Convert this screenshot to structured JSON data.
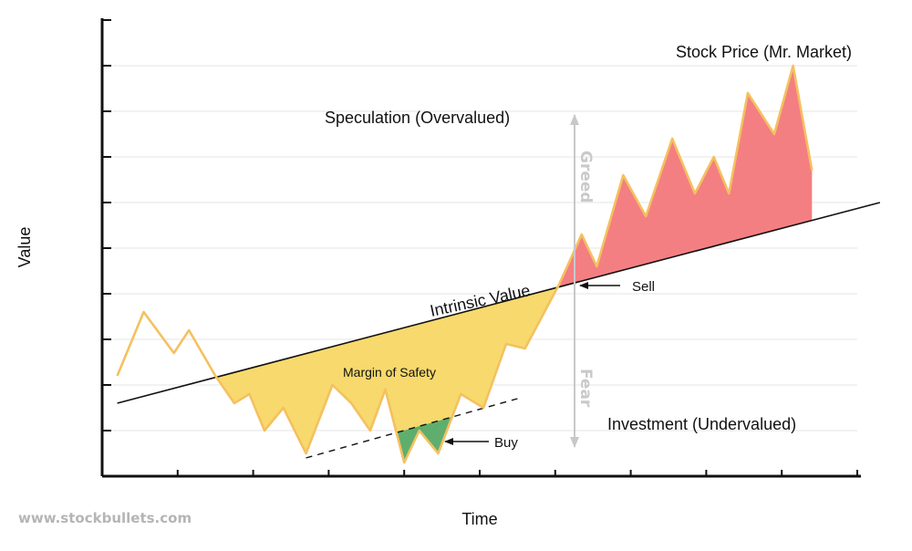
{
  "chart_data": {
    "type": "line",
    "xlabel": "Time",
    "ylabel": "Value",
    "x_range": [
      0,
      10
    ],
    "y_range": [
      0,
      10
    ],
    "grid": true,
    "series": [
      {
        "name": "Stock Price (Mr. Market)",
        "x": [
          0.2,
          0.55,
          0.95,
          1.15,
          1.5,
          1.75,
          1.95,
          2.15,
          2.4,
          2.7,
          3.05,
          3.3,
          3.55,
          3.75,
          4.0,
          4.2,
          4.45,
          4.75,
          5.05,
          5.35,
          5.6,
          6.05,
          6.35,
          6.55,
          6.9,
          7.2,
          7.55,
          7.85,
          8.1,
          8.3,
          8.55,
          8.9,
          9.15,
          9.4
        ],
        "y": [
          2.2,
          3.6,
          2.7,
          3.2,
          2.2,
          1.6,
          1.8,
          1.0,
          1.5,
          0.5,
          2.0,
          1.6,
          1.0,
          1.9,
          0.3,
          1.0,
          0.5,
          1.8,
          1.5,
          2.9,
          2.8,
          4.2,
          5.3,
          4.6,
          6.6,
          5.7,
          7.4,
          6.2,
          7.0,
          6.2,
          8.4,
          7.5,
          9.0,
          6.7
        ]
      },
      {
        "name": "Intrinsic Value",
        "x": [
          0.2,
          10.3
        ],
        "y": [
          1.6,
          6.0
        ]
      },
      {
        "name": "margin-dashed",
        "x": [
          2.7,
          5.5
        ],
        "y": [
          0.4,
          1.7
        ]
      }
    ]
  },
  "labels": {
    "stock_price": "Stock Price (Mr. Market)",
    "speculation": "Speculation (Overvalued)",
    "investment": "Investment (Undervalued)",
    "intrinsic": "Intrinsic Value",
    "margin": "Margin of Safety",
    "sell": "Sell",
    "buy": "Buy",
    "greed": "Greed",
    "fear": "Fear",
    "watermark": "www.stockbullets.com"
  },
  "colors": {
    "price_line": "#f4c15f",
    "margin_fill": "#f7d96d",
    "buy_fill": "#5fae6e",
    "overvalued_fill": "#f47f82",
    "grid": "#e6e6e6",
    "axis": "#111111",
    "greed_fear": "#c8c8c8"
  }
}
